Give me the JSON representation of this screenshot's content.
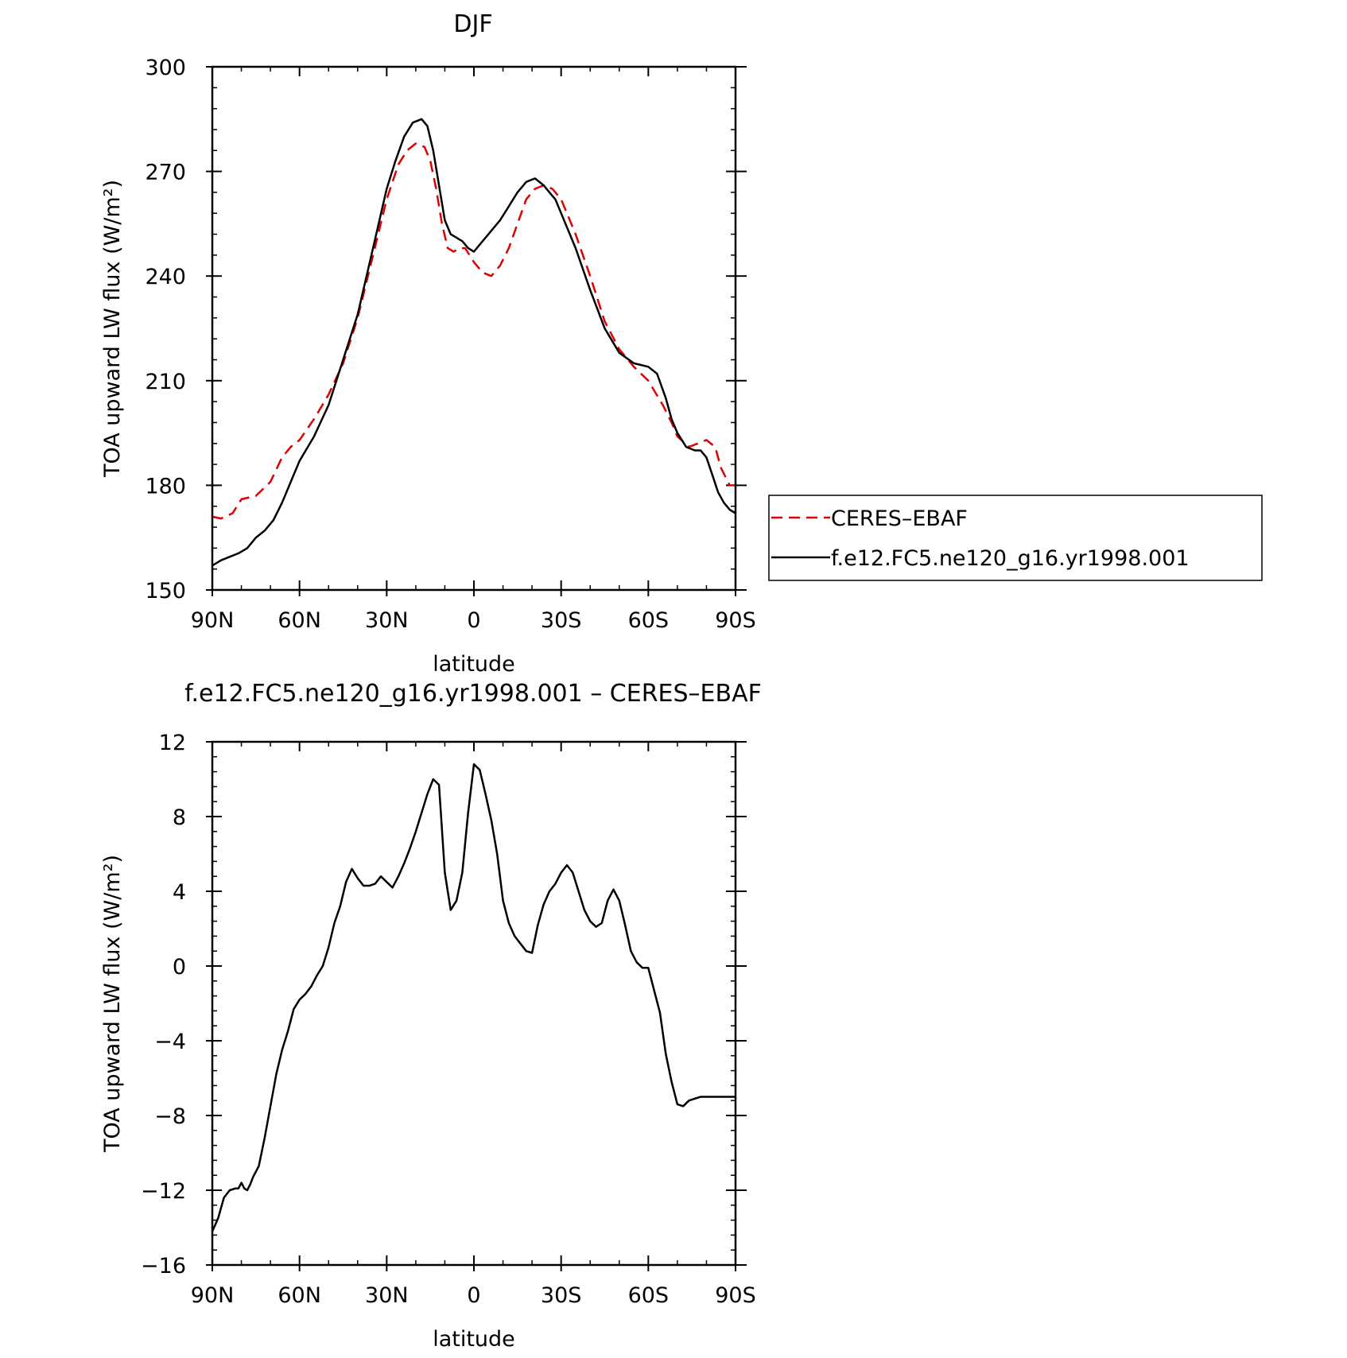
{
  "chart_data": [
    {
      "type": "line",
      "title": "DJF",
      "xlabel": "latitude",
      "ylabel": "TOA upward LW flux (W/m²)",
      "xticks": [
        90,
        60,
        30,
        0,
        -30,
        -60,
        -90
      ],
      "xtick_labels": [
        "90N",
        "60N",
        "30N",
        "0",
        "30S",
        "60S",
        "90S"
      ],
      "xlim": [
        90,
        -90
      ],
      "yticks": [
        150,
        180,
        210,
        240,
        270,
        300
      ],
      "ytick_labels": [
        "150",
        "180",
        "210",
        "240",
        "270",
        "300"
      ],
      "ylim": [
        150,
        300
      ],
      "legend": "right, outside",
      "series": [
        {
          "name": "CERES-EBAF",
          "color": "#e00000",
          "dash": "dashed",
          "x": [
            90,
            87,
            83,
            80,
            75,
            70,
            66,
            63,
            60,
            55,
            50,
            45,
            40,
            35,
            30,
            26,
            23,
            20,
            17,
            15,
            13,
            11,
            9,
            7,
            5,
            3,
            0,
            -3,
            -6,
            -9,
            -12,
            -15,
            -18,
            -21,
            -24,
            -27,
            -30,
            -35,
            -40,
            -45,
            -50,
            -55,
            -60,
            -65,
            -68,
            -70,
            -74,
            -77,
            -80,
            -83,
            -85,
            -88,
            -90
          ],
          "y": [
            171,
            170.5,
            172,
            176,
            177,
            181,
            188,
            191,
            193,
            199,
            206,
            215,
            228,
            245,
            262,
            272,
            276,
            278,
            277,
            273,
            265,
            255,
            248,
            247,
            248,
            248,
            244,
            241,
            240,
            243,
            248,
            255,
            262,
            265,
            266,
            265,
            262,
            252,
            240,
            227,
            219,
            214,
            210,
            203,
            198,
            194,
            191,
            192,
            193,
            191,
            185,
            180,
            180
          ]
        },
        {
          "name": "f.e12.FC5.ne120_g16.yr1998.001",
          "color": "#000000",
          "dash": "solid",
          "x": [
            90,
            87,
            84,
            81,
            78,
            75,
            72,
            69,
            66,
            63,
            60,
            55,
            50,
            45,
            40,
            35,
            30,
            27,
            24,
            21,
            18,
            16,
            14,
            12,
            10,
            8,
            6,
            4,
            2,
            0,
            -2,
            -4,
            -6,
            -9,
            -12,
            -15,
            -18,
            -21,
            -24,
            -26,
            -28,
            -30,
            -35,
            -40,
            -45,
            -50,
            -55,
            -60,
            -63,
            -66,
            -68,
            -70,
            -73,
            -76,
            -78,
            -80,
            -82,
            -84,
            -86,
            -88,
            -90
          ],
          "y": [
            157,
            158.5,
            159.5,
            160.5,
            162,
            165,
            167,
            170,
            175,
            181,
            187,
            194,
            203,
            216,
            229,
            247,
            265,
            273,
            280,
            284,
            285,
            283,
            276,
            266,
            256,
            252,
            251,
            250,
            248,
            247,
            249,
            251,
            253,
            256,
            260,
            264,
            267,
            268,
            266,
            264,
            262,
            258,
            248,
            236,
            225,
            218,
            215,
            214,
            212,
            205,
            199,
            195,
            191,
            190,
            190,
            188,
            183,
            178,
            175,
            173,
            172
          ]
        }
      ]
    },
    {
      "type": "line",
      "title": "f.e12.FC5.ne120_g16.yr1998.001 – CERES–EBAF",
      "xlabel": "latitude",
      "ylabel": "TOA upward LW flux (W/m²)",
      "xticks": [
        90,
        60,
        30,
        0,
        -30,
        -60,
        -90
      ],
      "xtick_labels": [
        "90N",
        "60N",
        "30N",
        "0",
        "30S",
        "60S",
        "90S"
      ],
      "xlim": [
        90,
        -90
      ],
      "yticks": [
        -16,
        -12,
        -8,
        -4,
        0,
        4,
        8,
        12
      ],
      "ytick_labels": [
        "−16",
        "−12",
        "−8",
        "−4",
        "0",
        "4",
        "8",
        "12"
      ],
      "ylim": [
        -16,
        12
      ],
      "series": [
        {
          "color": "#000000",
          "dash": "solid",
          "x": [
            90,
            88,
            86,
            84,
            82,
            81,
            80,
            79,
            78,
            77,
            76,
            74,
            72,
            70,
            68,
            66,
            64,
            62,
            60,
            58,
            56,
            54,
            52,
            50,
            48,
            46,
            44,
            42,
            40,
            38,
            36,
            34,
            32,
            30,
            28,
            26,
            24,
            22,
            20,
            18,
            16,
            14,
            12,
            10,
            8,
            6,
            4,
            2,
            0,
            -2,
            -4,
            -6,
            -8,
            -10,
            -12,
            -14,
            -16,
            -18,
            -20,
            -22,
            -24,
            -26,
            -28,
            -30,
            -32,
            -34,
            -36,
            -38,
            -40,
            -42,
            -44,
            -46,
            -48,
            -50,
            -52,
            -54,
            -56,
            -58,
            -60,
            -62,
            -64,
            -66,
            -68,
            -70,
            -72,
            -74,
            -76,
            -78,
            -80,
            -82,
            -84,
            -86,
            -88,
            -90
          ],
          "y": [
            -14.2,
            -13.5,
            -12.4,
            -12,
            -11.9,
            -11.9,
            -11.6,
            -11.9,
            -12,
            -11.7,
            -11.3,
            -10.7,
            -9.2,
            -7.5,
            -5.8,
            -4.5,
            -3.5,
            -2.3,
            -1.8,
            -1.5,
            -1.1,
            -0.5,
            0,
            1,
            2.3,
            3.2,
            4.5,
            5.2,
            4.7,
            4.3,
            4.3,
            4.4,
            4.8,
            4.5,
            4.2,
            4.8,
            5.5,
            6.3,
            7.2,
            8.2,
            9.2,
            10,
            9.7,
            5,
            3,
            3.5,
            5,
            8.2,
            10.8,
            10.5,
            9.2,
            7.8,
            6,
            3.5,
            2.3,
            1.6,
            1.2,
            0.8,
            0.7,
            2.2,
            3.3,
            4,
            4.4,
            5,
            5.4,
            5,
            4,
            3,
            2.4,
            2.1,
            2.3,
            3.5,
            4.1,
            3.5,
            2.2,
            0.8,
            0.2,
            -0.1,
            -0.1,
            -1.3,
            -2.5,
            -4.7,
            -6.2,
            -7.4,
            -7.5,
            -7.2,
            -7.1,
            -7,
            -7,
            -7,
            -7,
            -7,
            -7,
            -7
          ]
        }
      ]
    }
  ],
  "legend_entries": [
    {
      "label": "CERES–EBAF",
      "color": "#e00000",
      "dash": "dashed"
    },
    {
      "label": "f.e12.FC5.ne120_g16.yr1998.001",
      "color": "#000000",
      "dash": "solid"
    }
  ]
}
